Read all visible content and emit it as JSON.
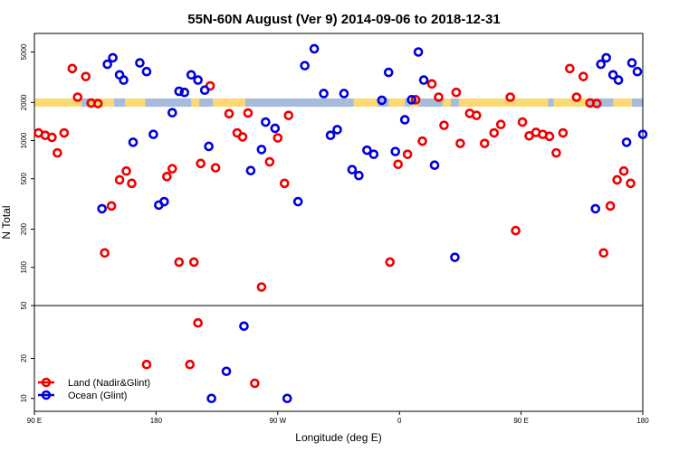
{
  "chart_data": {
    "type": "scatter",
    "title": "55N-60N August (Ver 9)   2014-09-06 to 2018-12-31",
    "xlabel": "Longitude (deg E)",
    "ylabel": "N Total",
    "x_ticks": [
      {
        "value": 90,
        "label": "90 E"
      },
      {
        "value": 180,
        "label": "180"
      },
      {
        "value": 270,
        "label": "90 W"
      },
      {
        "value": 360,
        "label": "0"
      },
      {
        "value": 450,
        "label": "90 E"
      },
      {
        "value": 540,
        "label": "180"
      }
    ],
    "xlim": [
      90,
      540
    ],
    "upper_panel": {
      "scale": "log",
      "ylim": [
        50,
        7000
      ],
      "y_ticks": [
        100,
        200,
        500,
        1000,
        2000,
        5000
      ]
    },
    "lower_panel": {
      "scale": "log",
      "ylim": [
        8,
        50
      ],
      "y_ticks": [
        10,
        20,
        50
      ]
    },
    "band": {
      "y_range": [
        1850,
        2150
      ],
      "colors": {
        "land": "#fdd976",
        "ocean": "#a7bcdc"
      }
    },
    "legend": {
      "position": "bottom-left",
      "entries": [
        {
          "label": "Land (Nadir&Glint)",
          "color": "#ee0000"
        },
        {
          "label": "Ocean (Glint)",
          "color": "#0000dd"
        }
      ]
    },
    "series": [
      {
        "name": "Land (Nadir&Glint)",
        "color": "#ee0000",
        "points": [
          [
            93,
            1150
          ],
          [
            98,
            1100
          ],
          [
            103,
            1060
          ],
          [
            107,
            800
          ],
          [
            112,
            1150
          ],
          [
            118,
            3700
          ],
          [
            122,
            2200
          ],
          [
            128,
            3200
          ],
          [
            132,
            1980
          ],
          [
            137,
            1960
          ],
          [
            142,
            130
          ],
          [
            147,
            305
          ],
          [
            153,
            490
          ],
          [
            158,
            575
          ],
          [
            162,
            460
          ],
          [
            173,
            18
          ],
          [
            188,
            520
          ],
          [
            192,
            600
          ],
          [
            197,
            110
          ],
          [
            208,
            110
          ],
          [
            211,
            37
          ],
          [
            205,
            18
          ],
          [
            213,
            660
          ],
          [
            220,
            2700
          ],
          [
            224,
            610
          ],
          [
            234,
            1630
          ],
          [
            240,
            1150
          ],
          [
            244,
            1070
          ],
          [
            248,
            1650
          ],
          [
            253,
            13
          ],
          [
            258,
            70
          ],
          [
            264,
            680
          ],
          [
            270,
            1050
          ],
          [
            275,
            460
          ],
          [
            278,
            1580
          ],
          [
            353,
            110
          ],
          [
            359,
            650
          ],
          [
            366,
            780
          ],
          [
            372,
            2100
          ],
          [
            377,
            990
          ],
          [
            384,
            2800
          ],
          [
            389,
            2200
          ],
          [
            393,
            1320
          ],
          [
            402,
            2400
          ],
          [
            405,
            950
          ],
          [
            412,
            1640
          ],
          [
            417,
            1580
          ],
          [
            423,
            950
          ],
          [
            430,
            1150
          ],
          [
            435,
            1340
          ],
          [
            442,
            2200
          ],
          [
            446,
            195
          ],
          [
            451,
            1400
          ],
          [
            456,
            1090
          ],
          [
            461,
            1160
          ],
          [
            466,
            1120
          ],
          [
            471,
            1080
          ],
          [
            476,
            800
          ],
          [
            481,
            1150
          ],
          [
            486,
            3700
          ],
          [
            491,
            2200
          ],
          [
            496,
            3200
          ],
          [
            501,
            1980
          ],
          [
            506,
            1960
          ],
          [
            511,
            130
          ],
          [
            516,
            305
          ],
          [
            521,
            490
          ],
          [
            526,
            575
          ],
          [
            531,
            460
          ]
        ]
      },
      {
        "name": "Ocean (Glint)",
        "color": "#0000dd",
        "points": [
          [
            140,
            290
          ],
          [
            144,
            4000
          ],
          [
            148,
            4500
          ],
          [
            153,
            3300
          ],
          [
            156,
            3000
          ],
          [
            163,
            970
          ],
          [
            168,
            4100
          ],
          [
            173,
            3500
          ],
          [
            178,
            1120
          ],
          [
            182,
            310
          ],
          [
            186,
            330
          ],
          [
            192,
            1660
          ],
          [
            197,
            2450
          ],
          [
            201,
            2400
          ],
          [
            206,
            3300
          ],
          [
            211,
            3000
          ],
          [
            216,
            2500
          ],
          [
            219,
            900
          ],
          [
            221,
            10
          ],
          [
            232,
            16
          ],
          [
            245,
            35
          ],
          [
            250,
            580
          ],
          [
            258,
            850
          ],
          [
            261,
            1400
          ],
          [
            268,
            1250
          ],
          [
            277,
            10
          ],
          [
            285,
            330
          ],
          [
            290,
            3900
          ],
          [
            297,
            5300
          ],
          [
            304,
            2350
          ],
          [
            309,
            1100
          ],
          [
            314,
            1220
          ],
          [
            319,
            2350
          ],
          [
            325,
            590
          ],
          [
            330,
            530
          ],
          [
            336,
            840
          ],
          [
            341,
            780
          ],
          [
            347,
            2080
          ],
          [
            352,
            3450
          ],
          [
            357,
            820
          ],
          [
            364,
            1460
          ],
          [
            369,
            2100
          ],
          [
            374,
            5000
          ],
          [
            378,
            3000
          ],
          [
            386,
            640
          ],
          [
            401,
            120
          ],
          [
            505,
            290
          ],
          [
            509,
            4000
          ],
          [
            513,
            4500
          ],
          [
            518,
            3300
          ],
          [
            522,
            3000
          ],
          [
            528,
            970
          ],
          [
            532,
            4100
          ],
          [
            536,
            3500
          ],
          [
            540,
            1120
          ]
        ]
      }
    ]
  }
}
